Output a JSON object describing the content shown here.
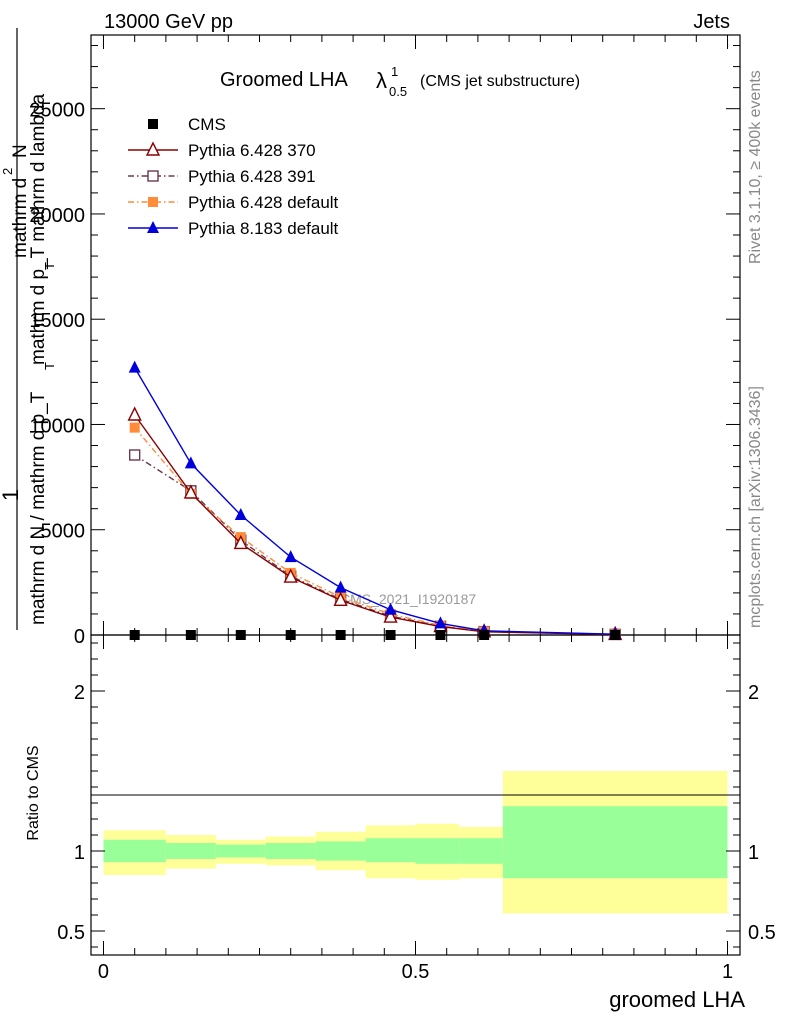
{
  "header": {
    "left": "13000 GeV pp",
    "right": "Jets"
  },
  "side_labels": {
    "rivet": "Rivet 3.1.10, ≥ 400k events",
    "mcplots": "mcplots.cern.ch [arXiv:1306.3436]"
  },
  "watermark": "CMS_2021_I1920187",
  "ylabel": {
    "numerator_one": "1",
    "numerator": "mathrm d N / mathrm d p_T",
    "numerator_sub": "T",
    "fraction_top": "mathrm d",
    "fraction_top_sup": "2",
    "fraction_top_N": "N",
    "fraction_bottom": "mathrm d p_T mathrm d lambda",
    "fraction_bottom_sub": "T"
  },
  "ratio_ylabel": "Ratio to CMS",
  "colors": {
    "cms": "#000000",
    "p370": "#8b0000",
    "p391": "#6b3a4e",
    "p6def": "#ff8c3a",
    "p8": "#0000dd",
    "band_inner": "#99ff99",
    "band_outer": "#ffff99"
  },
  "chart_data": [
    {
      "type": "line",
      "panel": "main",
      "title": "Groomed LHA",
      "title_lambda": "λ",
      "title_sup": "1",
      "title_sub": "0.5",
      "title_suffix": "(CMS jet substructure)",
      "xlabel": "groomed LHA",
      "xlim": [
        -0.02,
        1.02
      ],
      "ylim": [
        0,
        28500
      ],
      "yticks": [
        0,
        5000,
        10000,
        15000,
        20000,
        25000
      ],
      "ytick_labels": [
        "0",
        "5000",
        "10000",
        "15000",
        "20000",
        "25000"
      ],
      "series": [
        {
          "name": "CMS",
          "key": "cms",
          "marker": "square-filled",
          "x": [
            0.05,
            0.14,
            0.22,
            0.3,
            0.38,
            0.46,
            0.54,
            0.61,
            0.82
          ],
          "y": [
            0,
            0,
            0,
            0,
            0,
            0,
            0,
            0,
            0
          ]
        },
        {
          "name": "Pythia 6.428 370",
          "key": "p370",
          "marker": "triangle-open",
          "line": "solid",
          "x": [
            0.05,
            0.14,
            0.22,
            0.3,
            0.38,
            0.46,
            0.54,
            0.61,
            0.82
          ],
          "y": [
            10450,
            6750,
            4350,
            2750,
            1650,
            850,
            400,
            150,
            30
          ]
        },
        {
          "name": "Pythia 6.428 391",
          "key": "p391",
          "marker": "square-open",
          "line": "dashdot",
          "x": [
            0.05,
            0.14,
            0.22,
            0.3,
            0.38,
            0.46,
            0.54,
            0.61,
            0.82
          ],
          "y": [
            8550,
            6850,
            4500,
            2800,
            1700,
            900,
            420,
            160,
            30
          ]
        },
        {
          "name": "Pythia 6.428 default",
          "key": "p6def",
          "marker": "square-filled",
          "line": "dashdot",
          "x": [
            0.05,
            0.14,
            0.22,
            0.3,
            0.38,
            0.46,
            0.54,
            0.61,
            0.82
          ],
          "y": [
            9850,
            6700,
            4650,
            2950,
            1800,
            1000,
            450,
            170,
            35
          ]
        },
        {
          "name": "Pythia 8.183 default",
          "key": "p8",
          "marker": "triangle-filled",
          "line": "solid",
          "x": [
            0.05,
            0.14,
            0.22,
            0.3,
            0.38,
            0.46,
            0.54,
            0.61,
            0.82
          ],
          "y": [
            12700,
            8150,
            5700,
            3700,
            2250,
            1200,
            550,
            200,
            40
          ]
        }
      ]
    },
    {
      "type": "area",
      "panel": "ratio",
      "ylabel": "Ratio to CMS",
      "xlabel": "groomed LHA",
      "xlim": [
        -0.02,
        1.02
      ],
      "ylim": [
        0.35,
        2.35
      ],
      "yticks": [
        0.5,
        1,
        2
      ],
      "ytick_labels": [
        "0.5",
        "1",
        "2"
      ],
      "xticks": [
        0,
        0.5,
        1
      ],
      "xtick_labels": [
        "0",
        "0.5",
        "1"
      ],
      "bins": [
        {
          "lo": 0.0,
          "hi": 0.1,
          "inner": [
            0.93,
            1.07
          ],
          "outer": [
            0.85,
            1.13
          ]
        },
        {
          "lo": 0.1,
          "hi": 0.18,
          "inner": [
            0.95,
            1.05
          ],
          "outer": [
            0.89,
            1.1
          ]
        },
        {
          "lo": 0.18,
          "hi": 0.26,
          "inner": [
            0.96,
            1.04
          ],
          "outer": [
            0.92,
            1.07
          ]
        },
        {
          "lo": 0.26,
          "hi": 0.34,
          "inner": [
            0.95,
            1.05
          ],
          "outer": [
            0.91,
            1.09
          ]
        },
        {
          "lo": 0.34,
          "hi": 0.42,
          "inner": [
            0.94,
            1.06
          ],
          "outer": [
            0.88,
            1.12
          ]
        },
        {
          "lo": 0.42,
          "hi": 0.5,
          "inner": [
            0.93,
            1.08
          ],
          "outer": [
            0.83,
            1.16
          ]
        },
        {
          "lo": 0.5,
          "hi": 0.57,
          "inner": [
            0.92,
            1.08
          ],
          "outer": [
            0.82,
            1.17
          ]
        },
        {
          "lo": 0.57,
          "hi": 0.64,
          "inner": [
            0.92,
            1.08
          ],
          "outer": [
            0.83,
            1.15
          ]
        },
        {
          "lo": 0.64,
          "hi": 1.0,
          "inner": [
            0.83,
            1.28
          ],
          "outer": [
            0.61,
            1.5
          ]
        }
      ]
    }
  ]
}
